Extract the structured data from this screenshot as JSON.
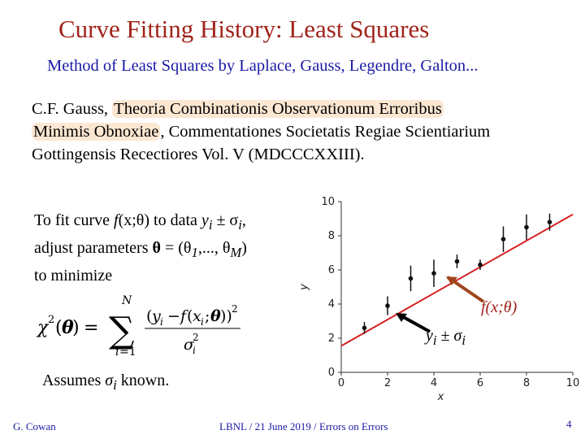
{
  "title": "Curve Fitting History:  Least Squares",
  "subtitle": "Method of Least Squares by Laplace, Gauss, Legendre, Galton...",
  "citation": {
    "author": "C.F. Gauss,",
    "work_title_part1": "Theoria Combinationis Observationum Erroribus",
    "work_title_part2": "Minimis Obnoxiae",
    "rest_line2": ", Commentationes Societatis Regiae Scientiarium",
    "line3": "Gottingensis Recectiores Vol. V (MDCCCXXIII)."
  },
  "fit_text": {
    "t1": "To fit curve ",
    "f": "f",
    "args": "(x;θ)",
    "t2": " to data ",
    "yi": "y",
    "i1": "i",
    "pm": " ± σ",
    "i2": "i",
    "comma": ",",
    "t3": "adjust parameters ",
    "theta": "θ",
    "t4": " = (θ",
    "sub1": "1",
    "t5": ",..., θ",
    "subM": "M",
    "t6": ")",
    "t7": "to minimize"
  },
  "assumes": {
    "t1": "Assumes ",
    "sigma": "σ",
    "i": "i",
    "t2": " known."
  },
  "annotations": {
    "fit": "f(x;θ)",
    "data_y": "y",
    "data_i": "i",
    "data_pm": " ± σ",
    "data_i2": "i"
  },
  "footer": {
    "left": "G. Cowan",
    "center": "LBNL / 21 June 2019 / Errors on Errors",
    "page": "4"
  },
  "chart_data": {
    "type": "scatter",
    "xlabel": "x",
    "ylabel": "y",
    "xlim": [
      0,
      10
    ],
    "ylim": [
      0,
      10
    ],
    "xticks": [
      0,
      2,
      4,
      6,
      8,
      10
    ],
    "yticks": [
      0,
      2,
      4,
      6,
      8,
      10
    ],
    "points": [
      {
        "x": 1.0,
        "y": 2.6,
        "err": 0.35
      },
      {
        "x": 2.0,
        "y": 3.9,
        "err": 0.55
      },
      {
        "x": 3.0,
        "y": 5.5,
        "err": 0.75
      },
      {
        "x": 4.0,
        "y": 5.8,
        "err": 0.8
      },
      {
        "x": 5.0,
        "y": 6.5,
        "err": 0.4
      },
      {
        "x": 6.0,
        "y": 6.3,
        "err": 0.3
      },
      {
        "x": 7.0,
        "y": 7.8,
        "err": 0.75
      },
      {
        "x": 8.0,
        "y": 8.5,
        "err": 0.75
      },
      {
        "x": 9.0,
        "y": 8.8,
        "err": 0.5
      }
    ],
    "fit_line": {
      "intercept": 1.55,
      "slope": 0.77,
      "color": "#d62020"
    },
    "point_color": "#111111"
  }
}
